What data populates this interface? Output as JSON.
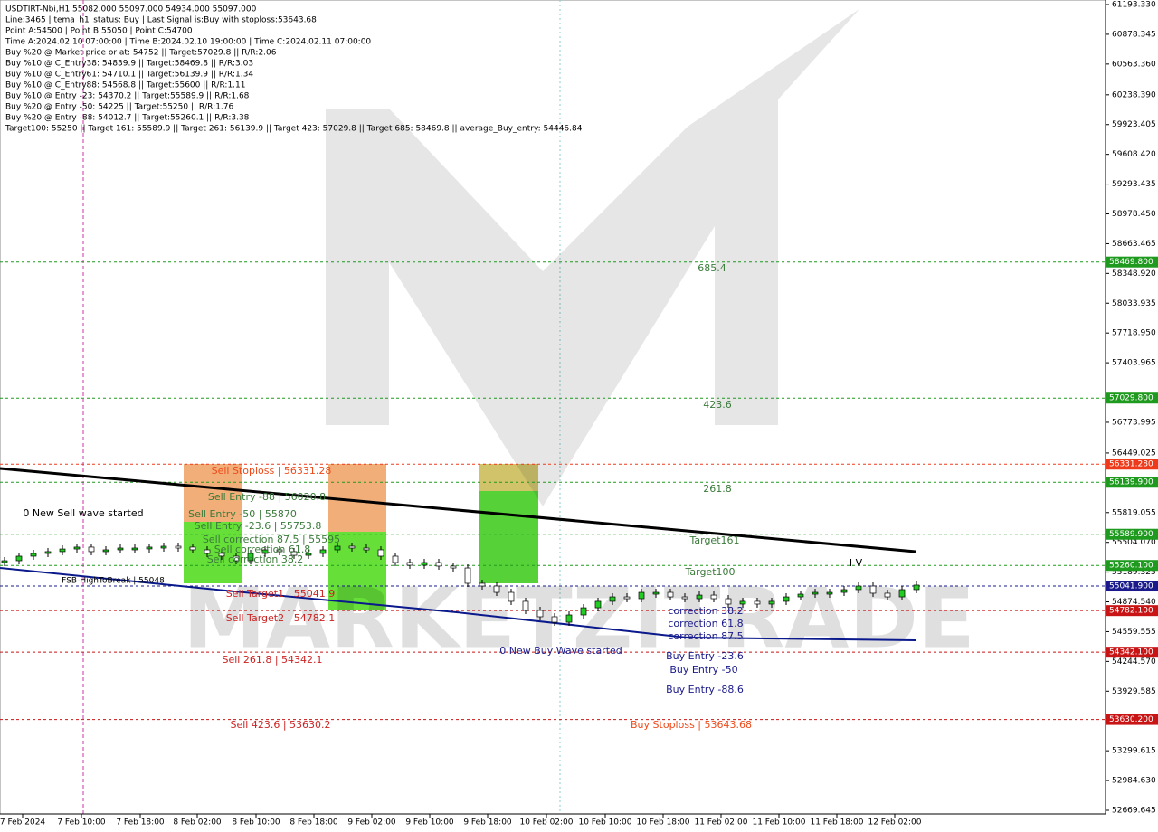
{
  "chart_data": {
    "type": "candlestick",
    "header": [
      "USDTIRT-Nbi,H1  55082.000 55097.000 54934.000 55097.000",
      "Line:3465 | tema_h1_status: Buy | Last Signal is:Buy with stoploss:53643.68",
      "Point A:54500 | Point B:55050 | Point C:54700",
      "Time A:2024.02.10 07:00:00 | Time B:2024.02.10 19:00:00 | Time C:2024.02.11 07:00:00",
      "Buy %20 @ Market price or at: 54752 || Target:57029.8 || R/R:2.06",
      "Buy %10 @ C_Entry38: 54839.9 || Target:58469.8 || R/R:3.03",
      "Buy %10 @ C_Entry61: 54710.1 || Target:56139.9 || R/R:1.34",
      "Buy %10 @ C_Entry88: 54568.8 || Target:55600 || R/R:1.11",
      "Buy %10 @ Entry -23: 54370.2 || Target:55589.9 || R/R:1.68",
      "Buy %20 @ Entry -50: 54225 || Target:55250 || R/R:1.76",
      "Buy %20 @ Entry -88: 54012.7 || Target:55260.1 || R/R:3.38",
      "Target100: 55250 || Target 161: 55589.9 || Target 261: 56139.9 || Target 423: 57029.8 || Target 685: 58469.8 || average_Buy_entry: 54446.84"
    ],
    "watermark": "MARKETZITRADE",
    "ylim": [
      52669.645,
      61193.33
    ],
    "yticks": [
      {
        "value": 61193.33,
        "label": "61193.330"
      },
      {
        "value": 60878.345,
        "label": "60878.345"
      },
      {
        "value": 60563.36,
        "label": "60563.360"
      },
      {
        "value": 60238.39,
        "label": "60238.390"
      },
      {
        "value": 59923.405,
        "label": "59923.405"
      },
      {
        "value": 59608.42,
        "label": "59608.420"
      },
      {
        "value": 59293.435,
        "label": "59293.435"
      },
      {
        "value": 58978.45,
        "label": "58978.450"
      },
      {
        "value": 58663.465,
        "label": "58663.465"
      },
      {
        "value": 58348.92,
        "label": "58348.920"
      },
      {
        "value": 58033.935,
        "label": "58033.935"
      },
      {
        "value": 57718.95,
        "label": "57718.950"
      },
      {
        "value": 57403.965,
        "label": "57403.965"
      },
      {
        "value": 56773.995,
        "label": "56773.995"
      },
      {
        "value": 56449.025,
        "label": "56449.025"
      },
      {
        "value": 55819.055,
        "label": "55819.055"
      },
      {
        "value": 55504.07,
        "label": "55504.070"
      },
      {
        "value": 55189.325,
        "label": "55189.325"
      },
      {
        "value": 54874.54,
        "label": "54874.540"
      },
      {
        "value": 54559.555,
        "label": "54559.555"
      },
      {
        "value": 54244.57,
        "label": "54244.570"
      },
      {
        "value": 53929.585,
        "label": "53929.585"
      },
      {
        "value": 53299.615,
        "label": "53299.615"
      },
      {
        "value": 52984.63,
        "label": "52984.630"
      },
      {
        "value": 52669.645,
        "label": "52669.645"
      }
    ],
    "x_labels": [
      "7 Feb 2024",
      "7 Feb 10:00",
      "7 Feb 18:00",
      "8 Feb 02:00",
      "8 Feb 10:00",
      "8 Feb 18:00",
      "9 Feb 02:00",
      "9 Feb 10:00",
      "9 Feb 18:00",
      "10 Feb 02:00",
      "10 Feb 10:00",
      "10 Feb 18:00",
      "11 Feb 02:00",
      "11 Feb 10:00",
      "11 Feb 18:00",
      "12 Feb 02:00"
    ],
    "closes": [
      55310,
      55358,
      55387,
      55406,
      55434,
      55454,
      55406,
      55425,
      55444,
      55444,
      55454,
      55463,
      55454,
      55425,
      55387,
      55358,
      55310,
      55387,
      55425,
      55406,
      55367,
      55387,
      55425,
      55463,
      55444,
      55425,
      55358,
      55291,
      55262,
      55291,
      55253,
      55233,
      55071,
      55042,
      54975,
      54880,
      54784,
      54717,
      54659,
      54736,
      54812,
      54880,
      54927,
      54908,
      54975,
      54975,
      54927,
      54908,
      54946,
      54908,
      54851,
      54880,
      54851,
      54880,
      54927,
      54956,
      54975,
      54975,
      55004,
      55042,
      54966,
      54927,
      55004,
      55052
    ],
    "series": [
      {
        "color": "#000000",
        "values": [
          56286,
          56066,
          55846,
          55626,
          55406
        ]
      },
      {
        "color": "#0a1a8c",
        "values": [
          55233,
          54990,
          54764,
          54497,
          54468
        ]
      }
    ],
    "levels": [
      {
        "value": 58469.8,
        "label": "58469.800",
        "color": "#1e9a1e"
      },
      {
        "value": 57029.8,
        "label": "57029.800",
        "color": "#1e9a1e"
      },
      {
        "value": 56331.28,
        "label": "56331.280",
        "color": "#ee3a1a"
      },
      {
        "value": 56139.9,
        "label": "56139.900",
        "color": "#1e9a1e"
      },
      {
        "value": 55589.9,
        "label": "55589.900",
        "color": "#1e9a1e"
      },
      {
        "value": 55260.1,
        "label": "55260.100",
        "color": "#1e9a1e"
      },
      {
        "value": 55041.9,
        "label": "55041.900",
        "color": "#1a1a8c"
      },
      {
        "value": 54782.1,
        "label": "54782.100",
        "color": "#c81414"
      },
      {
        "value": 54342.1,
        "label": "54342.100",
        "color": "#c81414"
      },
      {
        "value": 53630.2,
        "label": "53630.200",
        "color": "#c81414"
      }
    ],
    "annotations": [
      "685.4",
      "423.6",
      "261.8",
      "Target161",
      "Target100",
      "Sell Stoploss | 56331.28",
      "Sell Entry -88 | 56020.8",
      "Sell Entry -50 | 55870",
      "Sell Entry -23.6 | 55753.8",
      "Sell correction 87.5 | 55595",
      "Sell correction 61.8",
      "Sell correction 38.2",
      "Sell Target1 | 55041.9",
      "Sell Target2 | 54782.1",
      "Sell 261.8 | 54342.1",
      "Sell 423.6 | 53630.2",
      "0 New Sell wave started",
      "FSB-HighToBreak | 55048",
      "0 New Buy Wave started",
      "correction 38.2",
      "correction 61.8",
      "correction 87.5",
      "Buy Entry -23.6",
      "Buy Entry -50",
      "Buy Entry -88.6",
      "Buy Stoploss | 53643.68",
      "I V"
    ]
  }
}
